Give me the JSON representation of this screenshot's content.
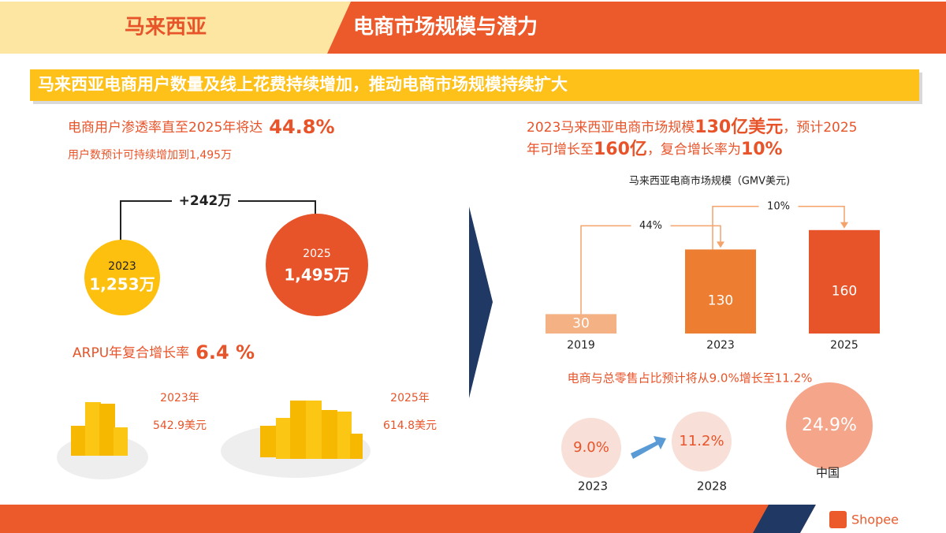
{
  "header": {
    "country": "马来西亚",
    "title": "电商市场规模与潜力"
  },
  "banner": "马来西亚电商用户数量及线上花费持续增加，推动电商市场规模持续扩大",
  "left": {
    "penetration_text": "电商用户渗透率直至2025年将达",
    "penetration_value": "44.8%",
    "users_note": "用户数预计可持续增加到1,495万",
    "increase": "+242万",
    "users": [
      {
        "year": "2023",
        "value": "1,253万"
      },
      {
        "year": "2025",
        "value": "1,495万"
      }
    ],
    "arpu_text": "ARPU年复合增长率",
    "arpu_value": "6.4 %",
    "arpu": [
      {
        "year": "2023年",
        "value": "542.9美元"
      },
      {
        "year": "2025年",
        "value": "614.8美元"
      }
    ]
  },
  "right": {
    "headline": [
      [
        {
          "text": "2023马来西亚电商市场规模",
          "emphasis": false
        },
        {
          "text": "130亿美元",
          "emphasis": true
        },
        {
          "text": "，预计2025",
          "emphasis": false
        }
      ],
      [
        {
          "text": "年可增长至",
          "emphasis": false
        },
        {
          "text": "160亿",
          "emphasis": true
        },
        {
          "text": "，复合增长率为",
          "emphasis": false
        },
        {
          "text": "10%",
          "emphasis": true
        }
      ]
    ],
    "retail_note": "电商与总零售占比预计将从9.0%增长至11.2%",
    "retail": [
      {
        "label": "2023",
        "value": "9.0%"
      },
      {
        "label": "2028",
        "value": "11.2%"
      },
      {
        "label": "中国",
        "value": "24.9%"
      }
    ]
  },
  "chart_data": {
    "type": "bar",
    "title": "马来西亚电商市场规模（GMV美元)",
    "categories": [
      "2019",
      "2023",
      "2025"
    ],
    "values": [
      30,
      130,
      160
    ],
    "colors": [
      "#f4b183",
      "#ed7d31",
      "#e8542a"
    ],
    "annotations": [
      "44%",
      "10%"
    ]
  },
  "footer": {
    "brand": "Shopee"
  }
}
